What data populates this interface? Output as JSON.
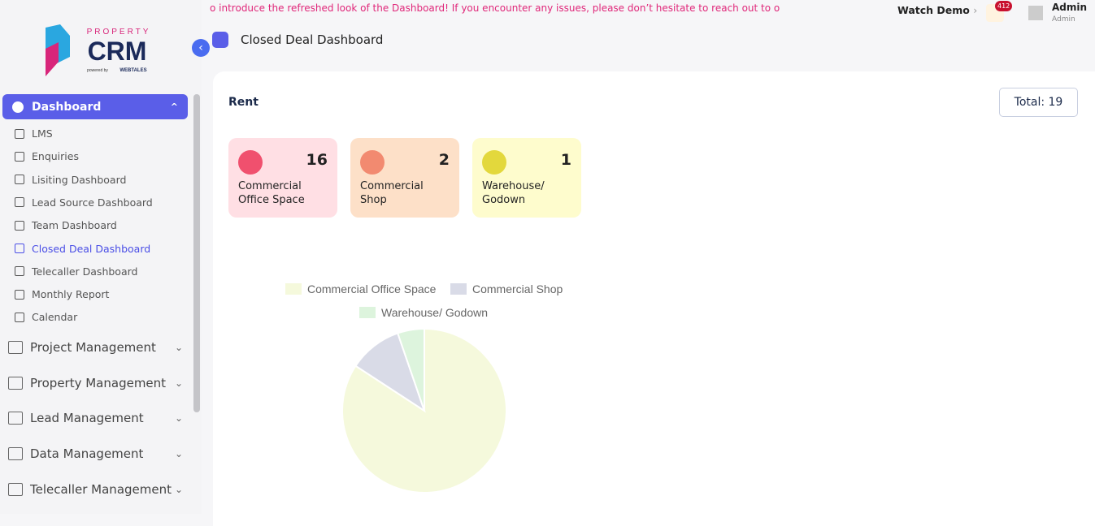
{
  "header": {
    "announcement": "o introduce the refreshed look of the Dashboard! If you encounter any issues, please don’t hesitate to reach out to o",
    "watch_demo": "Watch Demo",
    "notification_count": 412,
    "user_name": "Admin",
    "user_role": "Admin"
  },
  "logo": {
    "top": "PROPERTY",
    "main": "CRM",
    "powered_by": "powered by",
    "brand": "WEBTALES"
  },
  "sidebar": {
    "active_menu": "Dashboard",
    "submenu": [
      "LMS",
      "Enquiries",
      "Lisiting Dashboard",
      "Lead Source Dashboard",
      "Team Dashboard",
      "Closed Deal Dashboard",
      "Telecaller Dashboard",
      "Monthly Report",
      "Calendar"
    ],
    "menus": [
      "Project Management",
      "Property Management",
      "Lead Management",
      "Data Management",
      "Telecaller Management"
    ]
  },
  "page_title": "Closed Deal Dashboard",
  "section": {
    "title": "Rent",
    "total": "Total: 19"
  },
  "cards": [
    {
      "value": 16,
      "label": "Commercial Office Space"
    },
    {
      "value": 2,
      "label": "Commercial Shop"
    },
    {
      "value": 1,
      "label": "Warehouse/ Godown"
    }
  ],
  "chart_data": {
    "type": "pie",
    "categories": [
      "Commercial Office Space",
      "Commercial Shop",
      "Warehouse/ Godown"
    ],
    "values": [
      16,
      2,
      1
    ],
    "colors": [
      "#f5f9dc",
      "#d9dbe7",
      "#ddf4dd"
    ]
  }
}
